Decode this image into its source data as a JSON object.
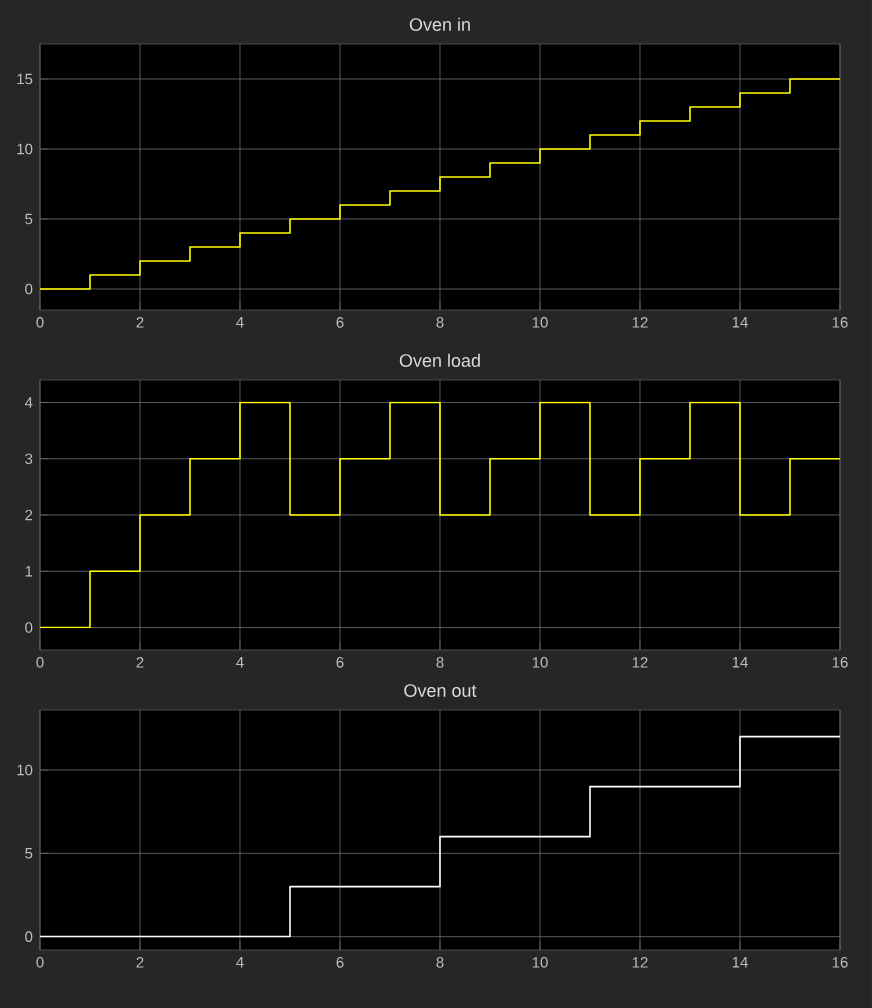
{
  "chart_data": [
    {
      "type": "step",
      "title": "Oven in",
      "x": [
        0,
        1,
        2,
        3,
        4,
        5,
        6,
        7,
        8,
        9,
        10,
        11,
        12,
        13,
        14,
        15,
        16
      ],
      "values": [
        0,
        1,
        2,
        3,
        4,
        5,
        6,
        7,
        8,
        9,
        10,
        11,
        12,
        13,
        14,
        15,
        15
      ],
      "color": "#ffff00",
      "xlim": [
        0,
        16
      ],
      "ylim": [
        -1.5,
        17.5
      ],
      "xticks": [
        0,
        2,
        4,
        6,
        8,
        10,
        12,
        14,
        16
      ],
      "yticks": [
        0,
        5,
        10,
        15
      ],
      "grid": true
    },
    {
      "type": "step",
      "title": "Oven load",
      "x": [
        0,
        1,
        2,
        3,
        4,
        5,
        6,
        7,
        8,
        9,
        10,
        11,
        12,
        13,
        14,
        15,
        16
      ],
      "values": [
        0,
        1,
        2,
        3,
        4,
        2,
        3,
        4,
        2,
        3,
        4,
        2,
        3,
        4,
        2,
        3,
        3
      ],
      "color": "#ffff00",
      "xlim": [
        0,
        16
      ],
      "ylim": [
        -0.4,
        4.4
      ],
      "xticks": [
        0,
        2,
        4,
        6,
        8,
        10,
        12,
        14,
        16
      ],
      "yticks": [
        0,
        1,
        2,
        3,
        4
      ],
      "grid": true
    },
    {
      "type": "step",
      "title": "Oven out",
      "x": [
        0,
        5,
        8,
        11,
        14,
        16
      ],
      "values": [
        0,
        3,
        6,
        9,
        12,
        12
      ],
      "color": "#ffffff",
      "xlim": [
        0,
        16
      ],
      "ylim": [
        -0.8,
        13.6
      ],
      "xticks": [
        0,
        2,
        4,
        6,
        8,
        10,
        12,
        14,
        16
      ],
      "yticks": [
        0,
        5,
        10
      ],
      "grid": true
    }
  ]
}
